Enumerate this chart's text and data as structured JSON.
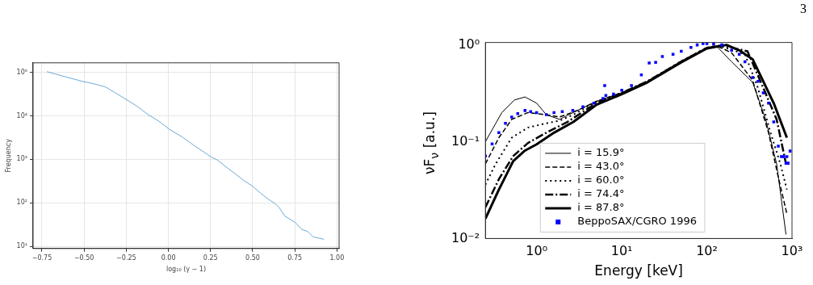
{
  "chart_data": [
    {
      "type": "line",
      "xlabel": "log₁₀ (γ − 1)",
      "ylabel": "Frequency",
      "log": "y",
      "grid": true,
      "xlim": [
        -0.8025,
        1.0125
      ],
      "ylim": [
        8.9,
        166000
      ],
      "xticks": [
        {
          "value": -0.75,
          "label": "−0.75"
        },
        {
          "value": -0.5,
          "label": "−0.50"
        },
        {
          "value": -0.25,
          "label": "−0.25"
        },
        {
          "value": 0,
          "label": "0.00"
        },
        {
          "value": 0.25,
          "label": "0.25"
        },
        {
          "value": 0.5,
          "label": "0.50"
        },
        {
          "value": 0.75,
          "label": "0.75"
        },
        {
          "value": 1,
          "label": "1.00"
        }
      ],
      "yticks": [
        {
          "value": 10,
          "label": "10¹"
        },
        {
          "value": 100,
          "label": "10²"
        },
        {
          "value": 1000,
          "label": "10³"
        },
        {
          "value": 10000,
          "label": "10⁴"
        },
        {
          "value": 100000,
          "label": "10⁵"
        }
      ],
      "x": [
        -0.721,
        -0.605,
        -0.509,
        -0.444,
        -0.372,
        -0.316,
        -0.251,
        -0.187,
        -0.123,
        -0.058,
        0.006,
        0.086,
        0.151,
        0.199,
        0.255,
        0.288,
        0.344,
        0.392,
        0.448,
        0.497,
        0.553,
        0.601,
        0.633,
        0.657,
        0.69,
        0.754,
        0.791,
        0.826,
        0.858,
        0.923
      ],
      "series": [
        {
          "color": "#3a8dc8",
          "values": [
            104000,
            78000,
            62000,
            55000,
            46000,
            34000,
            24000,
            16700,
            10900,
            7600,
            4900,
            3200,
            2100,
            1580,
            1130,
            980,
            660,
            480,
            325,
            245,
            160,
            115,
            96,
            78,
            50,
            35,
            24.5,
            22,
            16.5,
            14.5
          ]
        }
      ]
    },
    {
      "type": "line",
      "xlabel": "Energy [keV]",
      "ylabel": "νF$_{ν}$ [a.u.]",
      "log": "xy",
      "legend": "bottom",
      "annotations": [
        "3"
      ],
      "xlim": [
        0.25,
        1000
      ],
      "ylim": [
        0.01,
        1.06
      ],
      "xticks": [
        {
          "value": 1,
          "label": "10⁰"
        },
        {
          "value": 10,
          "label": "10¹"
        },
        {
          "value": 100,
          "label": "10²"
        },
        {
          "value": 1000,
          "label": "10³"
        }
      ],
      "yticks": [
        {
          "value": 0.01,
          "label": "10⁻²"
        },
        {
          "value": 0.1,
          "label": "10⁻¹"
        },
        {
          "value": 1,
          "label": "10⁰"
        }
      ],
      "series": [
        {
          "name": "i = 15.9°",
          "color": "#000000",
          "line_style": "solid",
          "x": [
            0.25,
            0.39,
            0.55,
            0.73,
            1.0,
            1.3,
            1.86,
            3,
            5,
            10,
            20,
            50,
            100,
            130,
            195,
            345,
            490,
            660,
            850
          ],
          "values": [
            0.1,
            0.2,
            0.27,
            0.29,
            0.25,
            0.19,
            0.17,
            0.21,
            0.26,
            0.32,
            0.42,
            0.68,
            0.94,
            0.97,
            0.67,
            0.41,
            0.17,
            0.059,
            0.011
          ]
        },
        {
          "name": "i = 43.0°",
          "color": "#000000",
          "line_style": "dashed",
          "x": [
            0.25,
            0.36,
            0.51,
            0.79,
            1.3,
            1.86,
            3,
            5,
            10,
            20,
            50,
            100,
            130,
            195,
            345,
            530,
            690,
            870
          ],
          "values": [
            0.059,
            0.11,
            0.17,
            0.2,
            0.19,
            0.18,
            0.21,
            0.26,
            0.32,
            0.42,
            0.68,
            0.94,
            0.98,
            0.83,
            0.43,
            0.124,
            0.043,
            0.018
          ]
        },
        {
          "name": "i = 60.0°",
          "color": "#000000",
          "line_style": "dotted",
          "x": [
            0.25,
            0.33,
            0.51,
            0.79,
            1.3,
            1.86,
            2.7,
            5,
            10,
            20,
            50,
            100,
            140,
            280,
            390,
            560,
            730,
            870
          ],
          "values": [
            0.036,
            0.059,
            0.11,
            0.14,
            0.155,
            0.165,
            0.19,
            0.26,
            0.32,
            0.42,
            0.68,
            0.94,
            0.98,
            0.8,
            0.38,
            0.124,
            0.059,
            0.032
          ]
        },
        {
          "name": "i = 74.4°",
          "color": "#000000",
          "line_style": "dashdot",
          "x": [
            0.25,
            0.36,
            0.53,
            0.79,
            1.3,
            2.3,
            5,
            10,
            20,
            50,
            100,
            150,
            300,
            460,
            660,
            850
          ],
          "values": [
            0.021,
            0.041,
            0.071,
            0.097,
            0.124,
            0.16,
            0.25,
            0.32,
            0.42,
            0.67,
            0.93,
            0.99,
            0.86,
            0.36,
            0.17,
            0.059
          ]
        },
        {
          "name": "i = 87.8°",
          "color": "#000000",
          "line_style": "solid",
          "x": [
            0.25,
            0.36,
            0.53,
            0.73,
            1.0,
            1.6,
            2.7,
            5,
            10,
            20,
            50,
            100,
            170,
            240,
            345,
            460,
            610,
            870
          ],
          "values": [
            0.016,
            0.032,
            0.063,
            0.081,
            0.094,
            0.124,
            0.16,
            0.24,
            0.31,
            0.41,
            0.66,
            0.92,
            1.0,
            0.88,
            0.71,
            0.42,
            0.25,
            0.11
          ]
        },
        {
          "name": "BeppoSAX/CGRO 1996",
          "type": "scatter",
          "marker": "square",
          "color": "#0000ff",
          "x": [
            0.25,
            0.3,
            0.36,
            0.43,
            0.51,
            0.6,
            0.73,
            0.85,
            1,
            1.3,
            1.6,
            2,
            2.66,
            3.5,
            4.7,
            6,
            6.3,
            6.5,
            8,
            10,
            13,
            17,
            21,
            25,
            30,
            40,
            50,
            65,
            77,
            90,
            100,
            120,
            150,
            195,
            240,
            280,
            345,
            400,
            460,
            530,
            610,
            690,
            750,
            800,
            850,
            870,
            900,
            950
          ],
          "values": [
            0.071,
            0.095,
            0.124,
            0.155,
            0.18,
            0.195,
            0.21,
            0.205,
            0.2,
            0.19,
            0.2,
            0.205,
            0.21,
            0.23,
            0.25,
            0.28,
            0.38,
            0.3,
            0.31,
            0.34,
            0.38,
            0.49,
            0.65,
            0.66,
            0.76,
            0.8,
            0.86,
            0.94,
            1.0,
            1.03,
            1.03,
            1.02,
            1.0,
            0.88,
            0.8,
            0.67,
            0.46,
            0.42,
            0.32,
            0.25,
            0.16,
            0.09,
            0.07,
            0.07,
            0.06,
            0.07,
            0.06,
            0.08
          ]
        }
      ]
    }
  ]
}
